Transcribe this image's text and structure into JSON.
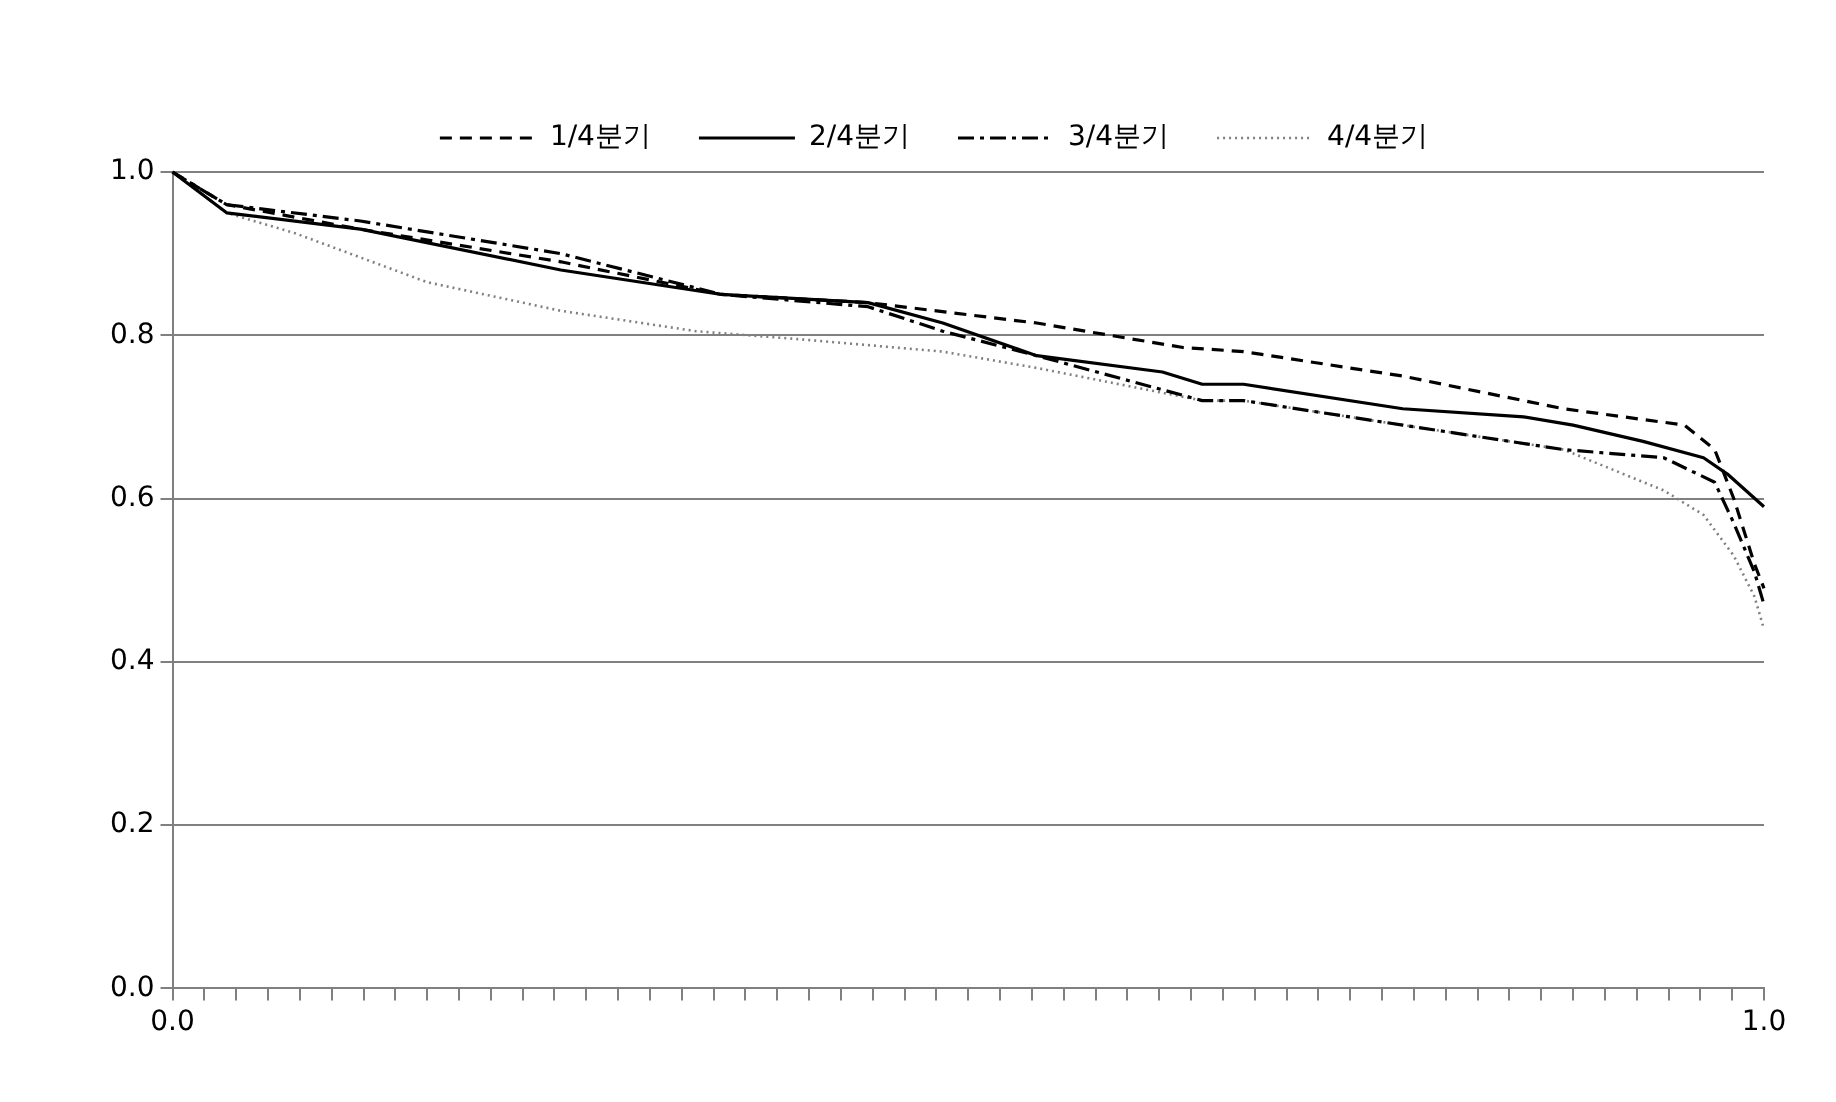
{
  "chart_data": {
    "type": "line",
    "legend": "top",
    "grid": "y",
    "marker": "none",
    "xlim": [
      0,
      1
    ],
    "ylim": [
      0,
      1
    ],
    "xticks": [
      {
        "value": 0,
        "label": "0.0"
      },
      {
        "value": 0.02,
        "label": null
      },
      {
        "value": 0.04,
        "label": null
      },
      {
        "value": 0.06,
        "label": null
      },
      {
        "value": 0.08,
        "label": null
      },
      {
        "value": 0.1,
        "label": null
      },
      {
        "value": 0.12,
        "label": null
      },
      {
        "value": 0.14,
        "label": null
      },
      {
        "value": 0.16,
        "label": null
      },
      {
        "value": 0.18,
        "label": null
      },
      {
        "value": 0.2,
        "label": null
      },
      {
        "value": 0.22,
        "label": null
      },
      {
        "value": 0.24,
        "label": null
      },
      {
        "value": 0.26,
        "label": null
      },
      {
        "value": 0.28,
        "label": null
      },
      {
        "value": 0.3,
        "label": null
      },
      {
        "value": 0.32,
        "label": null
      },
      {
        "value": 0.34,
        "label": null
      },
      {
        "value": 0.36,
        "label": null
      },
      {
        "value": 0.38,
        "label": null
      },
      {
        "value": 0.4,
        "label": null
      },
      {
        "value": 0.42,
        "label": null
      },
      {
        "value": 0.44,
        "label": null
      },
      {
        "value": 0.46,
        "label": null
      },
      {
        "value": 0.48,
        "label": null
      },
      {
        "value": 0.5,
        "label": null
      },
      {
        "value": 0.52,
        "label": null
      },
      {
        "value": 0.54,
        "label": null
      },
      {
        "value": 0.56,
        "label": null
      },
      {
        "value": 0.58,
        "label": null
      },
      {
        "value": 0.6,
        "label": null
      },
      {
        "value": 0.62,
        "label": null
      },
      {
        "value": 0.64,
        "label": null
      },
      {
        "value": 0.66,
        "label": null
      },
      {
        "value": 0.68,
        "label": null
      },
      {
        "value": 0.7,
        "label": null
      },
      {
        "value": 0.72,
        "label": null
      },
      {
        "value": 0.74,
        "label": null
      },
      {
        "value": 0.76,
        "label": null
      },
      {
        "value": 0.78,
        "label": null
      },
      {
        "value": 0.8,
        "label": null
      },
      {
        "value": 0.82,
        "label": null
      },
      {
        "value": 0.84,
        "label": null
      },
      {
        "value": 0.86,
        "label": null
      },
      {
        "value": 0.88,
        "label": null
      },
      {
        "value": 0.9,
        "label": null
      },
      {
        "value": 0.92,
        "label": null
      },
      {
        "value": 0.94,
        "label": null
      },
      {
        "value": 0.96,
        "label": null
      },
      {
        "value": 0.98,
        "label": null
      },
      {
        "value": 1,
        "label": "1.0"
      }
    ],
    "yticks": [
      {
        "value": 0,
        "label": "0.0"
      },
      {
        "value": 0.2,
        "label": "0.2"
      },
      {
        "value": 0.4,
        "label": "0.4"
      },
      {
        "value": 0.6,
        "label": "0.6"
      },
      {
        "value": 0.8,
        "label": "0.8"
      },
      {
        "value": 1,
        "label": "1.0"
      }
    ],
    "series": [
      {
        "name": "1/4분기",
        "color": "#000000",
        "line_style": "dashed",
        "x": [
          0,
          0.034,
          0.118,
          0.244,
          0.345,
          0.437,
          0.543,
          0.635,
          0.673,
          0.773,
          0.874,
          0.95,
          0.969,
          0.981,
          0.994,
          1
        ],
        "values": [
          1,
          0.96,
          0.93,
          0.89,
          0.85,
          0.84,
          0.815,
          0.785,
          0.78,
          0.75,
          0.71,
          0.69,
          0.66,
          0.6,
          0.52,
          0.49
        ]
      },
      {
        "name": "2/4분기",
        "color": "#000000",
        "line_style": "solid",
        "x": [
          0,
          0.034,
          0.118,
          0.244,
          0.345,
          0.437,
          0.484,
          0.543,
          0.622,
          0.647,
          0.673,
          0.773,
          0.849,
          0.88,
          0.924,
          0.962,
          0.977,
          1
        ],
        "values": [
          1,
          0.95,
          0.93,
          0.88,
          0.85,
          0.84,
          0.815,
          0.775,
          0.755,
          0.74,
          0.74,
          0.71,
          0.7,
          0.69,
          0.67,
          0.65,
          0.63,
          0.59
        ]
      },
      {
        "name": "3/4분기",
        "color": "#000000",
        "line_style": "dashdot",
        "x": [
          0,
          0.034,
          0.118,
          0.244,
          0.345,
          0.437,
          0.484,
          0.543,
          0.647,
          0.673,
          0.773,
          0.874,
          0.937,
          0.969,
          0.981,
          0.994,
          1
        ],
        "values": [
          1,
          0.96,
          0.94,
          0.9,
          0.85,
          0.835,
          0.805,
          0.775,
          0.72,
          0.72,
          0.69,
          0.66,
          0.65,
          0.62,
          0.57,
          0.51,
          0.47
        ]
      },
      {
        "name": "4/4분기",
        "color": "#808080",
        "line_style": "dotted",
        "x": [
          0,
          0.034,
          0.077,
          0.16,
          0.244,
          0.329,
          0.395,
          0.484,
          0.543,
          0.647,
          0.673,
          0.773,
          0.874,
          0.937,
          0.962,
          0.981,
          0.994,
          1
        ],
        "values": [
          1,
          0.95,
          0.925,
          0.865,
          0.83,
          0.805,
          0.795,
          0.78,
          0.76,
          0.72,
          0.72,
          0.69,
          0.66,
          0.61,
          0.58,
          0.53,
          0.48,
          0.44
        ]
      }
    ]
  }
}
